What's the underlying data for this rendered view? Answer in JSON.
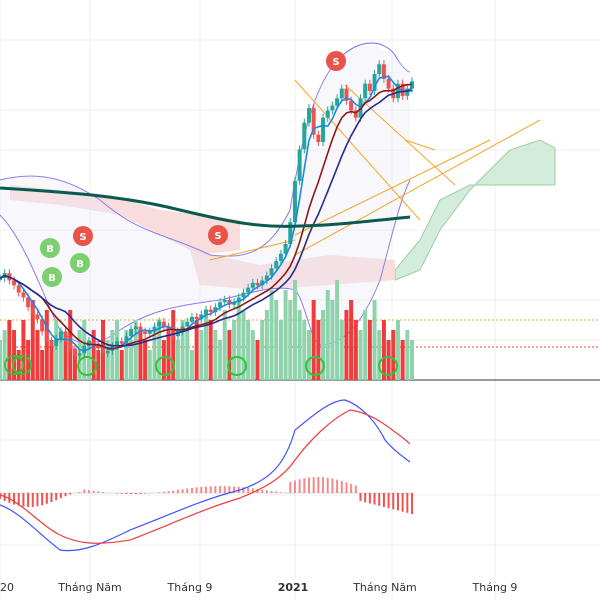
{
  "chart_data": {
    "type": "candlestick",
    "x_axis": {
      "tick_labels": [
        "20",
        "Tháng Năm",
        "Tháng 9",
        "2021",
        "Tháng Năm",
        "Tháng 9"
      ],
      "tick_positions": [
        0,
        24,
        48,
        72,
        96,
        120
      ]
    },
    "colors": {
      "up": "#26a69a",
      "down": "#ef5350",
      "vol_up": "#8fd3ac",
      "vol_down": "#ef3b3b",
      "ma_long": "#0b5a4e",
      "ma_fast": "#1e88e5",
      "ma_mid": "#8b1a1a",
      "ma_slow": "#2a2a8a",
      "bb": "#7b68ee",
      "cloud_bull": "#cfead7",
      "cloud_bear": "#f7d4d4",
      "trend": "#f5a623",
      "macd": "#3f51ff",
      "signal": "#ef3b3b",
      "buy": "#7bcf6e",
      "sell": "#e8534a",
      "ring": "#34c43a"
    },
    "ohlc_close": [
      72,
      74,
      71,
      69,
      66,
      64,
      60,
      57,
      55,
      50,
      46,
      44,
      47,
      50,
      46,
      43,
      40,
      41,
      44,
      46,
      45,
      43,
      41,
      42,
      44,
      46,
      45,
      48,
      51,
      52,
      50,
      49,
      50,
      52,
      54,
      52,
      50,
      48,
      50,
      52,
      54,
      56,
      55,
      57,
      59,
      58,
      60,
      62,
      63,
      61,
      62,
      64,
      66,
      68,
      70,
      69,
      71,
      73,
      76,
      79,
      82,
      86,
      95,
      112,
      125,
      136,
      142,
      131,
      128,
      138,
      141,
      143,
      146,
      150,
      145,
      141,
      138,
      146,
      152,
      149,
      156,
      160,
      154,
      150,
      146,
      152,
      147,
      150,
      153
    ],
    "ma_long": [
      145,
      146,
      146,
      147,
      147,
      147,
      148,
      148,
      148,
      148,
      148,
      148,
      148,
      148,
      148,
      148,
      148,
      148,
      148,
      148,
      148,
      148,
      148,
      148,
      148,
      148,
      148,
      148,
      148,
      148,
      148,
      148,
      148,
      148,
      148,
      148,
      148,
      148,
      148,
      148,
      148,
      148,
      148,
      148,
      148,
      148,
      148,
      148,
      148,
      148,
      148,
      148,
      148,
      148,
      148,
      148,
      148,
      148,
      148,
      148,
      148,
      148,
      148,
      148,
      148,
      148,
      148,
      148,
      148,
      148,
      148,
      148,
      148,
      148,
      148,
      148,
      148,
      148,
      148,
      148,
      148,
      148,
      148,
      148,
      148,
      148,
      148,
      148,
      148
    ],
    "volume": [
      4,
      5,
      6,
      5,
      3,
      6,
      4,
      8,
      5,
      3,
      7,
      4,
      6,
      5,
      4,
      7,
      3,
      5,
      6,
      4,
      5,
      3,
      6,
      4,
      5,
      6,
      3,
      5,
      4,
      6,
      5,
      4,
      3,
      5,
      6,
      4,
      5,
      7,
      4,
      6,
      5,
      3,
      6,
      5,
      7,
      6,
      5,
      4,
      7,
      5,
      6,
      8,
      7,
      6,
      5,
      4,
      6,
      7,
      9,
      8,
      6,
      9,
      8,
      10,
      7,
      6,
      5,
      8,
      6,
      7,
      9,
      8,
      10,
      6,
      7,
      8,
      6,
      5,
      7,
      6,
      8,
      5,
      6,
      4,
      5,
      6,
      4,
      5,
      4
    ],
    "buy_signal_label": "B",
    "sell_signal_label": "S"
  }
}
